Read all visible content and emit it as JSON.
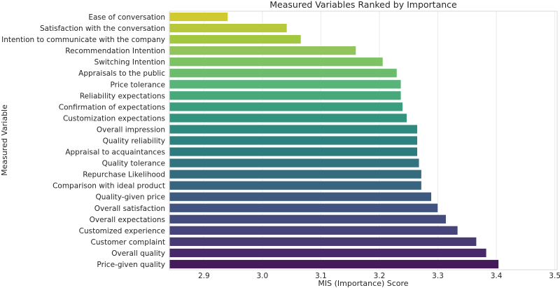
{
  "chart_data": {
    "type": "bar",
    "orientation": "horizontal",
    "title": "Measured Variables Ranked by Importance",
    "xlabel": "MIS (Importance) Score",
    "ylabel": "Measured Variable",
    "xlim": [
      2.841,
      3.504
    ],
    "xticks": [
      2.9,
      3.0,
      3.1,
      3.2,
      3.3,
      3.4,
      3.5
    ],
    "xtick_labels": [
      "2.9",
      "3.0",
      "3.1",
      "3.2",
      "3.3",
      "3.4",
      "3.5"
    ],
    "grid": true,
    "categories": [
      "Ease of conversation",
      "Satisfaction with the conversation",
      "Intention to communicate with the company",
      "Recommendation Intention",
      "Switching Intention",
      "Appraisals to the public",
      "Price tolerance",
      "Reliability expectations",
      "Confirmation of expectations",
      "Customization expectations",
      "Overall impression",
      "Quality reliability",
      "Appraisal to acquaintances",
      "Quality tolerance",
      "Repurchase Likelihood",
      "Comparison with ideal product",
      "Quality-given price",
      "Overall satisfaction",
      "Overall expectations",
      "Customized experience",
      "Customer complaint",
      "Overall quality",
      "Price-given quality"
    ],
    "values": [
      2.941,
      3.042,
      3.066,
      3.16,
      3.206,
      3.23,
      3.237,
      3.237,
      3.24,
      3.247,
      3.265,
      3.265,
      3.265,
      3.268,
      3.272,
      3.272,
      3.289,
      3.3,
      3.314,
      3.334,
      3.366,
      3.383,
      3.404
    ],
    "colors": [
      "#cfca30",
      "#b7c93a",
      "#a2c840",
      "#91c45a",
      "#7dc263",
      "#6bbc6d",
      "#58b479",
      "#47a97a",
      "#3a9e7e",
      "#32947d",
      "#2e8a7e",
      "#2d827f",
      "#2e7b7f",
      "#31747f",
      "#346c7e",
      "#37647e",
      "#3d5b80",
      "#415380",
      "#444b7d",
      "#47437b",
      "#483a73",
      "#47296b",
      "#441a5a"
    ]
  }
}
